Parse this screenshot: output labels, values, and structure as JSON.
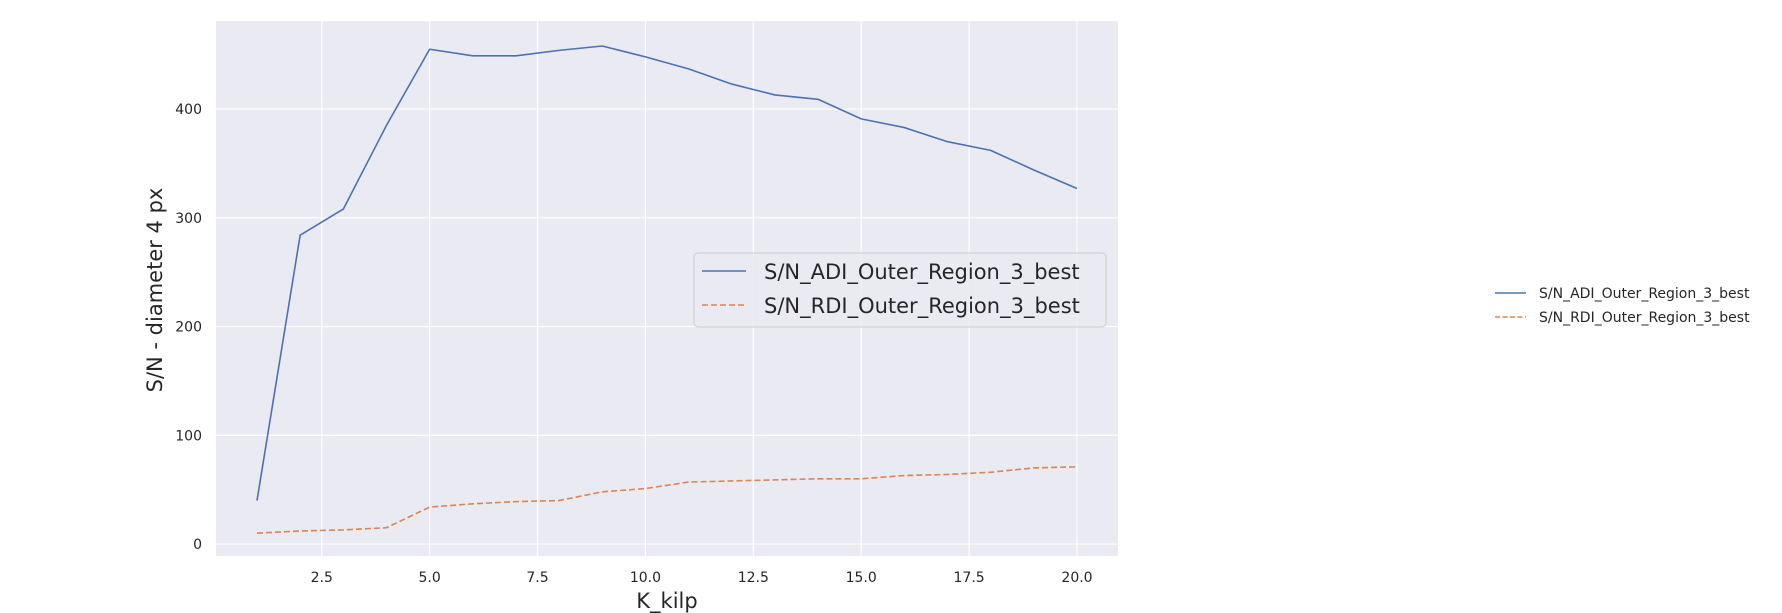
{
  "chart_data": {
    "type": "line",
    "xlabel": "K_kilp",
    "ylabel": "S/N - diameter 4 px",
    "xlim": [
      0.05,
      20.95
    ],
    "ylim": [
      -11,
      481
    ],
    "xticks": [
      2.5,
      5.0,
      7.5,
      10.0,
      12.5,
      15.0,
      17.5,
      20.0
    ],
    "xtick_labels": [
      "2.5",
      "5.0",
      "7.5",
      "10.0",
      "12.5",
      "15.0",
      "17.5",
      "20.0"
    ],
    "yticks": [
      0,
      100,
      200,
      300,
      400
    ],
    "ytick_labels": [
      "0",
      "100",
      "200",
      "300",
      "400"
    ],
    "grid": true,
    "legend_placement": "center-right",
    "x": [
      1,
      2,
      3,
      4,
      5,
      6,
      7,
      8,
      9,
      10,
      11,
      12,
      13,
      14,
      15,
      16,
      17,
      18,
      19,
      20
    ],
    "series": [
      {
        "name": "S/N_ADI_Outer_Region_3_best",
        "color": "#4c72b0",
        "dash": "solid",
        "values": [
          40,
          284,
          308,
          385,
          455,
          449,
          449,
          454,
          458,
          448,
          437,
          423,
          413,
          409,
          391,
          383,
          370,
          362,
          344,
          327
        ]
      },
      {
        "name": "S/N_RDI_Outer_Region_3_best",
        "color": "#dd8452",
        "dash": "dashed",
        "values": [
          10,
          12,
          13,
          15,
          34,
          37,
          39,
          40,
          48,
          51,
          57,
          58,
          59,
          60,
          60,
          63,
          64,
          66,
          70,
          71
        ]
      }
    ]
  }
}
